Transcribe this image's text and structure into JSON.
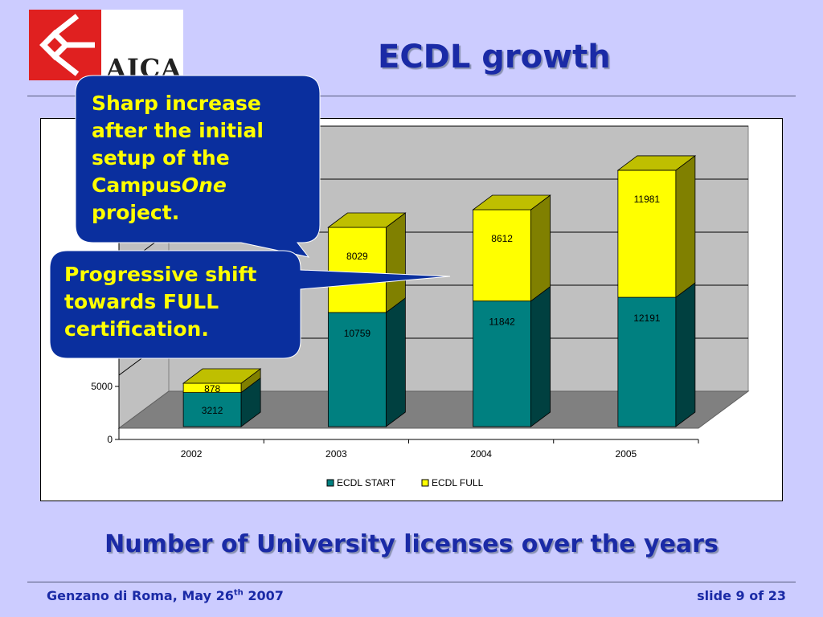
{
  "logo": {
    "text": "AICA",
    "brand_color": "#e02020"
  },
  "slide": {
    "title": "ECDL growth",
    "subtitle": "Number of University licenses over the years",
    "footer_left_pre": "Genzano di Roma, May 26",
    "footer_left_sup": "th",
    "footer_left_post": " 2007",
    "footer_right": "slide 9 of 23",
    "title_color": "#1a2aa6"
  },
  "callouts": [
    {
      "text_lines": [
        "Sharp increase",
        "after the initial",
        "setup of the"
      ],
      "line_pre": "Campus",
      "line_italic": "One",
      "line_last": "project.",
      "fill": "#0a2f9e",
      "text_color": "#ffff00"
    },
    {
      "text_lines": [
        "Progressive shift",
        "towards FULL",
        "certification."
      ],
      "fill": "#0a2f9e",
      "text_color": "#ffff00"
    }
  ],
  "chart_data": {
    "type": "bar",
    "stacked": true,
    "three_d": true,
    "categories": [
      "2002",
      "2003",
      "2004",
      "2005"
    ],
    "series": [
      {
        "name": "ECDL START",
        "values": [
          3212,
          10759,
          11842,
          12191
        ],
        "color": "#008080"
      },
      {
        "name": "ECDL FULL",
        "values": [
          878,
          8029,
          8612,
          11981
        ],
        "color": "#ffff00"
      }
    ],
    "y_ticks": [
      0,
      5000
    ],
    "ylim": [
      0,
      25000
    ],
    "gridlines": true,
    "legend_position": "bottom"
  }
}
